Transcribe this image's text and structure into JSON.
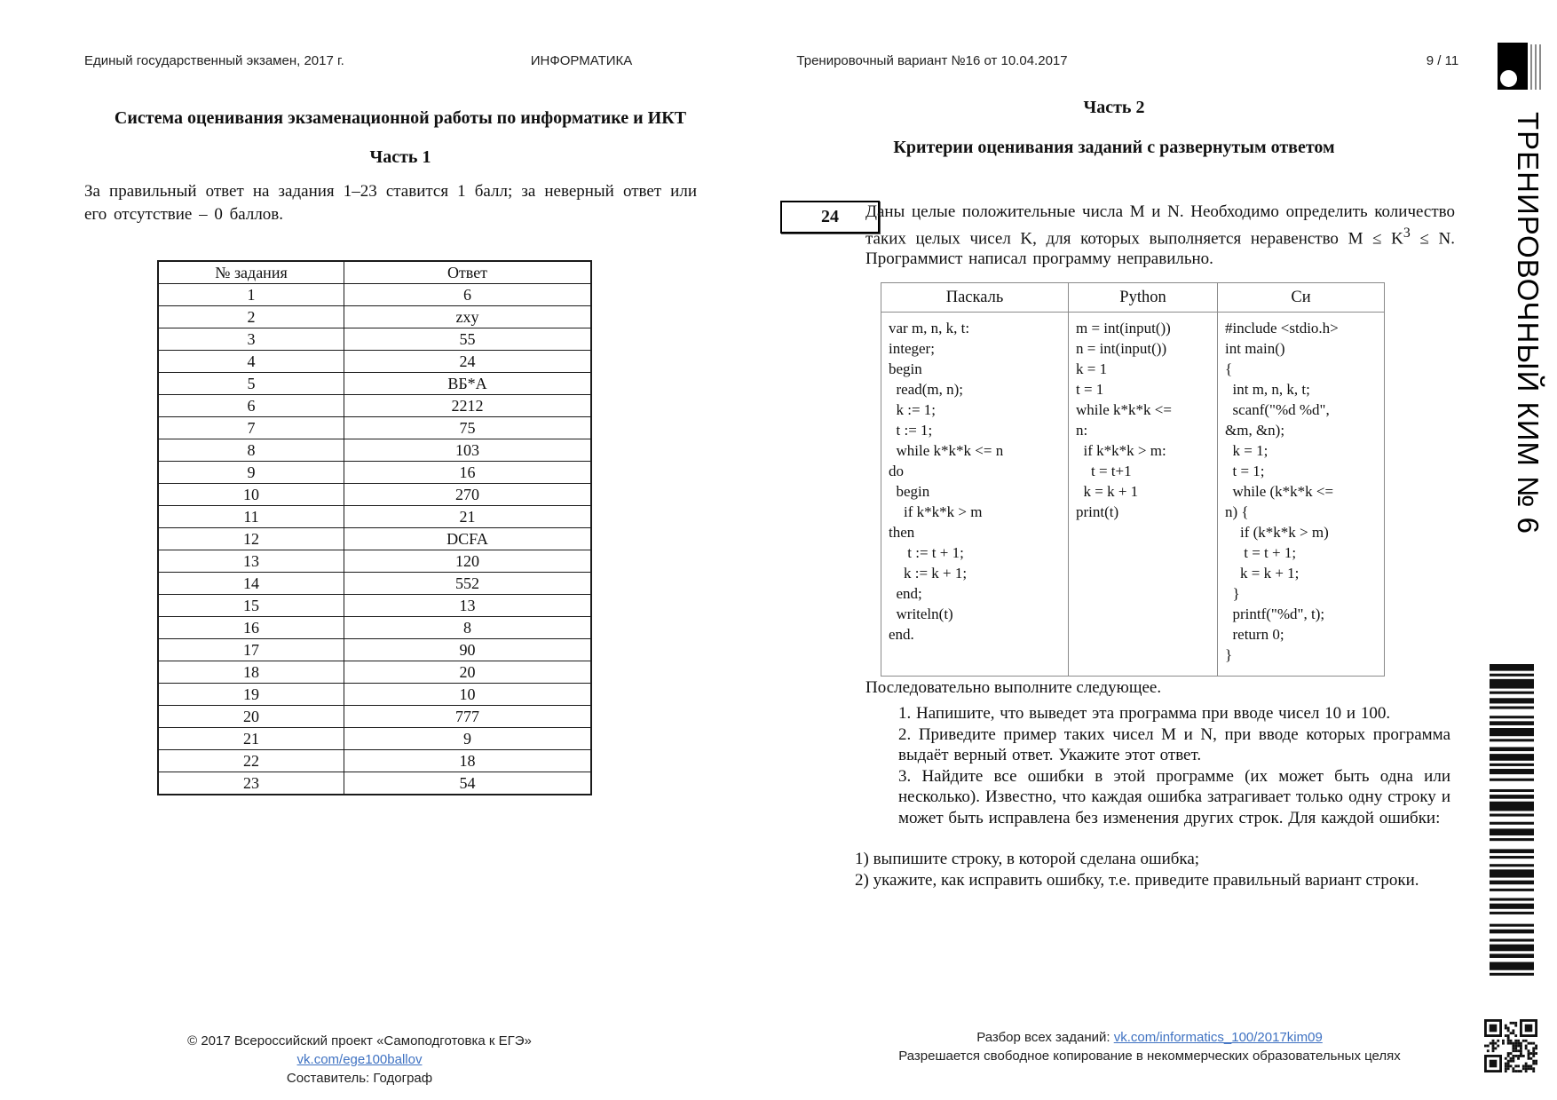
{
  "header": {
    "exam": "Единый государственный экзамен, 2017 г.",
    "subject": "ИНФОРМАТИКА",
    "variant": "Тренировочный вариант №16 от 10.04.2017",
    "page": "9 / 11"
  },
  "vertical_label": "ТРЕНИРОВОЧНЫЙ КИМ № 6",
  "part1": {
    "title": "Система оценивания экзаменационной работы по информатике и ИКТ",
    "heading": "Часть 1",
    "intro": "За правильный ответ на задания 1–23 ставится 1 балл; за неверный ответ или его отсутствие – 0 баллов.",
    "table": {
      "headers": [
        "№ задания",
        "Ответ"
      ],
      "rows": [
        [
          "1",
          "6"
        ],
        [
          "2",
          "zxy"
        ],
        [
          "3",
          "55"
        ],
        [
          "4",
          "24"
        ],
        [
          "5",
          "ВБ*А"
        ],
        [
          "6",
          "2212"
        ],
        [
          "7",
          "75"
        ],
        [
          "8",
          "103"
        ],
        [
          "9",
          "16"
        ],
        [
          "10",
          "270"
        ],
        [
          "11",
          "21"
        ],
        [
          "12",
          "DCFA"
        ],
        [
          "13",
          "120"
        ],
        [
          "14",
          "552"
        ],
        [
          "15",
          "13"
        ],
        [
          "16",
          "8"
        ],
        [
          "17",
          "90"
        ],
        [
          "18",
          "20"
        ],
        [
          "19",
          "10"
        ],
        [
          "20",
          "777"
        ],
        [
          "21",
          "9"
        ],
        [
          "22",
          "18"
        ],
        [
          "23",
          "54"
        ]
      ]
    }
  },
  "part2": {
    "heading": "Часть 2",
    "subheading": "Критерии оценивания заданий с развернутым ответом",
    "task": {
      "number": "24",
      "text_pre": "Даны целые положительные числа M и N. Необходимо определить количество таких целых чисел K, для которых выполняется неравенство M ≤ K",
      "sup": "3",
      "text_post": " ≤ N. Программист написал программу неправильно."
    },
    "code_table": {
      "headers": [
        "Паскаль",
        "Python",
        "Си"
      ],
      "pascal": "var m, n, k, t:\ninteger;\nbegin\n  read(m, n);\n  k := 1;\n  t := 1;\n  while k*k*k <= n\ndo\n  begin\n    if k*k*k > m\nthen\n     t := t + 1;\n    k := k + 1;\n  end;\n  writeln(t)\nend.",
      "python": "m = int(input())\nn = int(input())\nk = 1\nt = 1\nwhile k*k*k <=\nn:\n  if k*k*k > m:\n    t = t+1\n  k = k + 1\nprint(t)",
      "c": "#include <stdio.h>\nint main()\n{\n  int m, n, k, t;\n  scanf(\"%d %d\",\n&m, &n);\n  k = 1;\n  t = 1;\n  while (k*k*k <=\nn) {\n    if (k*k*k > m)\n     t = t + 1;\n    k = k + 1;\n  }\n  printf(\"%d\", t);\n  return 0;\n}"
    },
    "followup": "Последовательно выполните следующее.",
    "steps": [
      "1. Напишите, что выведет эта программа при вводе чисел 10 и 100.",
      "2. Приведите пример таких чисел М и N, при вводе которых программа выдаёт верный ответ. Укажите этот ответ.",
      "3. Найдите все ошибки в этой программе (их может быть одна или несколько). Известно, что каждая ошибка затрагивает только одну строку и может быть исправлена без изменения других строк. Для каждой ошибки:"
    ],
    "error_instructions": [
      "1) выпишите строку, в которой сделана ошибка;",
      "2) укажите, как исправить ошибку, т.е. приведите правильный вариант строки."
    ]
  },
  "footer": {
    "left_line1_text": "© 2017 Всероссийский проект «Самоподготовка к ЕГЭ» ",
    "left_line1_link": "vk.com/ege100ballov",
    "left_line2": "Составитель: Годограф",
    "right_line1_text": "Разбор всех заданий: ",
    "right_line1_link": "vk.com/informatics_100/2017kim09",
    "right_line2": "Разрешается свободное копирование в некоммерческих образовательных целях"
  },
  "colors": {
    "link": "#3f72c2",
    "ink": "#111111"
  }
}
